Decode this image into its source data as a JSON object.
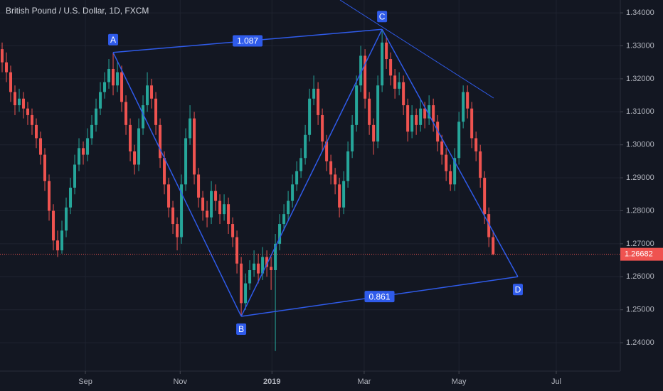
{
  "chart_data": {
    "type": "candlestick",
    "title": "British Pound / U.S. Dollar, 1D, FXCM",
    "up_color": "#26a69a",
    "down_color": "#ef5350",
    "pattern_color": "#2f5bea",
    "grid": true,
    "xlim": [
      -0.5,
      144.8
    ],
    "xticks": [
      {
        "value": 19.5,
        "label": "Sep"
      },
      {
        "value": 41.7,
        "label": "Nov"
      },
      {
        "value": 63.2,
        "label": "2019"
      },
      {
        "value": 84.8,
        "label": "Mar"
      },
      {
        "value": 107,
        "label": "May"
      },
      {
        "value": 129.8,
        "label": "Jul"
      }
    ],
    "ylim": [
      1.2314,
      1.3439
    ],
    "yticks": [
      {
        "value": 1.24,
        "label": "1.24000"
      },
      {
        "value": 1.25,
        "label": "1.25000"
      },
      {
        "value": 1.26,
        "label": "1.26000"
      },
      {
        "value": 1.27,
        "label": "1.27000"
      },
      {
        "value": 1.28,
        "label": "1.28000"
      },
      {
        "value": 1.29,
        "label": "1.29000"
      },
      {
        "value": 1.3,
        "label": "1.30000"
      },
      {
        "value": 1.31,
        "label": "1.31000"
      },
      {
        "value": 1.32,
        "label": "1.32000"
      },
      {
        "value": 1.33,
        "label": "1.33000"
      },
      {
        "value": 1.34,
        "label": "1.34000"
      }
    ],
    "last_price": 1.26682,
    "candles": [
      [
        1.329,
        1.331,
        1.322,
        1.325
      ],
      [
        1.325,
        1.328,
        1.319,
        1.322
      ],
      [
        1.322,
        1.324,
        1.313,
        1.316
      ],
      [
        1.316,
        1.318,
        1.309,
        1.312
      ],
      [
        1.312,
        1.317,
        1.31,
        1.314
      ],
      [
        1.314,
        1.316,
        1.308,
        1.311
      ],
      [
        1.311,
        1.313,
        1.306,
        1.309
      ],
      [
        1.309,
        1.311,
        1.303,
        1.306
      ],
      [
        1.306,
        1.308,
        1.299,
        1.302
      ],
      [
        1.302,
        1.304,
        1.294,
        1.297
      ],
      [
        1.297,
        1.299,
        1.286,
        1.289
      ],
      [
        1.289,
        1.291,
        1.277,
        1.28
      ],
      [
        1.28,
        1.282,
        1.268,
        1.271
      ],
      [
        1.271,
        1.274,
        1.266,
        1.268
      ],
      [
        1.268,
        1.277,
        1.267,
        1.274
      ],
      [
        1.274,
        1.284,
        1.272,
        1.281
      ],
      [
        1.281,
        1.29,
        1.279,
        1.287
      ],
      [
        1.287,
        1.297,
        1.285,
        1.294
      ],
      [
        1.294,
        1.302,
        1.292,
        1.299
      ],
      [
        1.299,
        1.301,
        1.294,
        1.297
      ],
      [
        1.297,
        1.305,
        1.295,
        1.302
      ],
      [
        1.302,
        1.309,
        1.3,
        1.306
      ],
      [
        1.306,
        1.314,
        1.304,
        1.311
      ],
      [
        1.311,
        1.319,
        1.309,
        1.316
      ],
      [
        1.316,
        1.322,
        1.314,
        1.319
      ],
      [
        1.319,
        1.326,
        1.317,
        1.323
      ],
      [
        1.323,
        1.328,
        1.315,
        1.318
      ],
      [
        1.318,
        1.325,
        1.316,
        1.322
      ],
      [
        1.322,
        1.324,
        1.31,
        1.313
      ],
      [
        1.313,
        1.315,
        1.303,
        1.306
      ],
      [
        1.306,
        1.308,
        1.295,
        1.298
      ],
      [
        1.298,
        1.3,
        1.291,
        1.294
      ],
      [
        1.294,
        1.308,
        1.292,
        1.305
      ],
      [
        1.305,
        1.315,
        1.303,
        1.312
      ],
      [
        1.312,
        1.322,
        1.31,
        1.318
      ],
      [
        1.318,
        1.32,
        1.311,
        1.314
      ],
      [
        1.314,
        1.316,
        1.303,
        1.306
      ],
      [
        1.306,
        1.308,
        1.293,
        1.296
      ],
      [
        1.296,
        1.298,
        1.285,
        1.288
      ],
      [
        1.288,
        1.29,
        1.278,
        1.281
      ],
      [
        1.281,
        1.283,
        1.273,
        1.276
      ],
      [
        1.276,
        1.278,
        1.268,
        1.272
      ],
      [
        1.272,
        1.291,
        1.27,
        1.288
      ],
      [
        1.288,
        1.305,
        1.286,
        1.302
      ],
      [
        1.302,
        1.312,
        1.3,
        1.308
      ],
      [
        1.308,
        1.31,
        1.288,
        1.291
      ],
      [
        1.291,
        1.293,
        1.281,
        1.284
      ],
      [
        1.284,
        1.286,
        1.277,
        1.28
      ],
      [
        1.28,
        1.283,
        1.275,
        1.278
      ],
      [
        1.278,
        1.289,
        1.276,
        1.286
      ],
      [
        1.286,
        1.288,
        1.28,
        1.283
      ],
      [
        1.283,
        1.285,
        1.276,
        1.279
      ],
      [
        1.279,
        1.285,
        1.277,
        1.282
      ],
      [
        1.282,
        1.284,
        1.273,
        1.276
      ],
      [
        1.276,
        1.278,
        1.269,
        1.272
      ],
      [
        1.272,
        1.274,
        1.261,
        1.264
      ],
      [
        1.264,
        1.266,
        1.248,
        1.252
      ],
      [
        1.252,
        1.261,
        1.25,
        1.258
      ],
      [
        1.258,
        1.265,
        1.256,
        1.262
      ],
      [
        1.262,
        1.268,
        1.26,
        1.264
      ],
      [
        1.264,
        1.267,
        1.258,
        1.261
      ],
      [
        1.261,
        1.269,
        1.259,
        1.266
      ],
      [
        1.266,
        1.268,
        1.26,
        1.263
      ],
      [
        1.263,
        1.266,
        1.256,
        1.262
      ],
      [
        1.262,
        1.273,
        1.2375,
        1.27
      ],
      [
        1.27,
        1.279,
        1.268,
        1.276
      ],
      [
        1.276,
        1.282,
        1.274,
        1.279
      ],
      [
        1.279,
        1.286,
        1.277,
        1.283
      ],
      [
        1.283,
        1.291,
        1.281,
        1.288
      ],
      [
        1.288,
        1.295,
        1.286,
        1.292
      ],
      [
        1.292,
        1.299,
        1.29,
        1.296
      ],
      [
        1.296,
        1.306,
        1.294,
        1.303
      ],
      [
        1.303,
        1.317,
        1.301,
        1.314
      ],
      [
        1.314,
        1.321,
        1.312,
        1.317
      ],
      [
        1.317,
        1.319,
        1.306,
        1.309
      ],
      [
        1.309,
        1.311,
        1.298,
        1.301
      ],
      [
        1.301,
        1.303,
        1.292,
        1.295
      ],
      [
        1.295,
        1.297,
        1.288,
        1.291
      ],
      [
        1.291,
        1.293,
        1.285,
        1.288
      ],
      [
        1.288,
        1.29,
        1.278,
        1.281
      ],
      [
        1.281,
        1.292,
        1.279,
        1.289
      ],
      [
        1.289,
        1.301,
        1.287,
        1.298
      ],
      [
        1.298,
        1.309,
        1.296,
        1.306
      ],
      [
        1.306,
        1.321,
        1.304,
        1.318
      ],
      [
        1.318,
        1.33,
        1.316,
        1.327
      ],
      [
        1.327,
        1.329,
        1.311,
        1.314
      ],
      [
        1.314,
        1.316,
        1.303,
        1.306
      ],
      [
        1.306,
        1.308,
        1.297,
        1.301
      ],
      [
        1.301,
        1.321,
        1.299,
        1.318
      ],
      [
        1.318,
        1.335,
        1.316,
        1.331
      ],
      [
        1.331,
        1.333,
        1.323,
        1.326
      ],
      [
        1.326,
        1.328,
        1.318,
        1.321
      ],
      [
        1.321,
        1.323,
        1.314,
        1.317
      ],
      [
        1.317,
        1.322,
        1.315,
        1.319
      ],
      [
        1.319,
        1.321,
        1.309,
        1.312
      ],
      [
        1.312,
        1.314,
        1.301,
        1.304
      ],
      [
        1.304,
        1.312,
        1.302,
        1.309
      ],
      [
        1.309,
        1.311,
        1.303,
        1.306
      ],
      [
        1.306,
        1.314,
        1.304,
        1.311
      ],
      [
        1.311,
        1.313,
        1.305,
        1.308
      ],
      [
        1.308,
        1.315,
        1.306,
        1.312
      ],
      [
        1.312,
        1.314,
        1.304,
        1.307
      ],
      [
        1.307,
        1.309,
        1.298,
        1.301
      ],
      [
        1.301,
        1.303,
        1.294,
        1.297
      ],
      [
        1.297,
        1.299,
        1.289,
        1.292
      ],
      [
        1.292,
        1.294,
        1.286,
        1.288
      ],
      [
        1.288,
        1.299,
        1.286,
        1.296
      ],
      [
        1.296,
        1.31,
        1.294,
        1.307
      ],
      [
        1.307,
        1.318,
        1.305,
        1.316
      ],
      [
        1.316,
        1.318,
        1.308,
        1.311
      ],
      [
        1.311,
        1.313,
        1.299,
        1.302
      ],
      [
        1.302,
        1.304,
        1.295,
        1.298
      ],
      [
        1.298,
        1.3,
        1.287,
        1.29
      ],
      [
        1.29,
        1.292,
        1.276,
        1.279
      ],
      [
        1.279,
        1.281,
        1.269,
        1.272
      ],
      [
        1.272,
        1.274,
        1.2665,
        1.2668
      ]
    ],
    "pattern": {
      "points": [
        {
          "label": "A",
          "x": 26,
          "price": 1.328
        },
        {
          "label": "B",
          "x": 56,
          "price": 1.248
        },
        {
          "label": "C",
          "x": 89,
          "price": 1.335
        },
        {
          "label": "D",
          "x": 120.8,
          "price": 1.26
        }
      ],
      "ratios": [
        1.087,
        0.861
      ]
    }
  }
}
